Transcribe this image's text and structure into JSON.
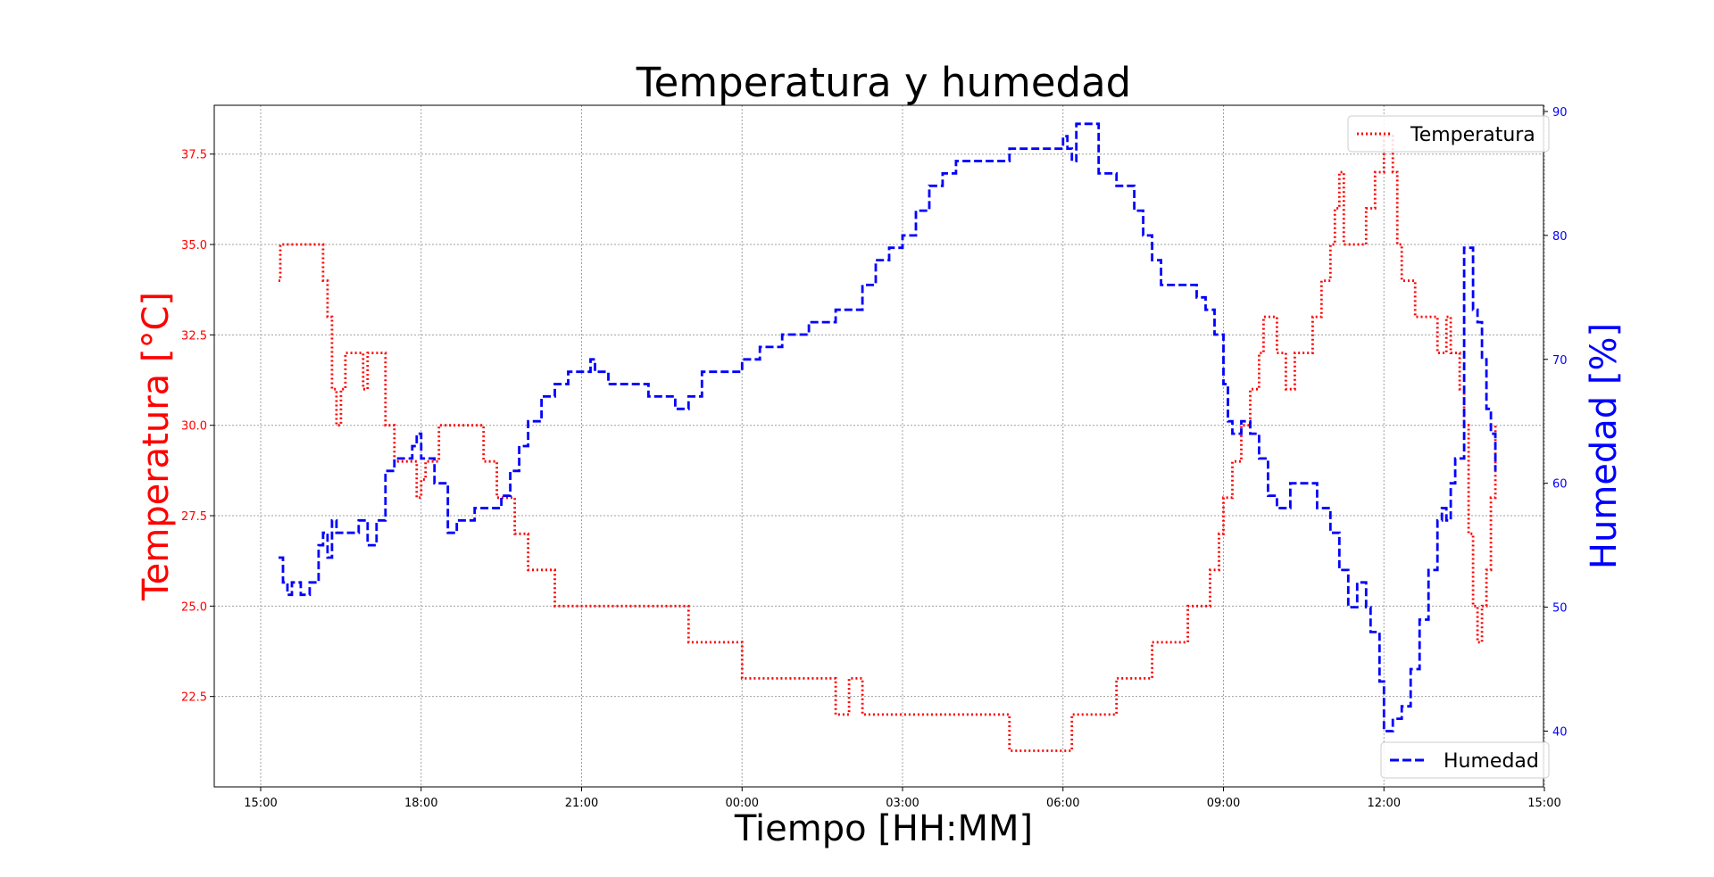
{
  "chart_data": {
    "type": "line",
    "title": "Temperatura y humedad",
    "xlabel": "Tiempo [HH:MM]",
    "ylabel_left": "Temperatura [°C]",
    "ylabel_right": "Humedad [%]",
    "x_unit": "time of day (HH:MM), starting at 15:00 and ending at 15:00 next day",
    "x_tick_labels": [
      "15:00",
      "18:00",
      "21:00",
      "00:00",
      "03:00",
      "06:00",
      "09:00",
      "12:00",
      "15:00"
    ],
    "y_left_ticks": [
      "22.5",
      "25.0",
      "27.5",
      "30.0",
      "32.5",
      "35.0",
      "37.5"
    ],
    "y_right_ticks": [
      "40",
      "50",
      "60",
      "70",
      "80",
      "90"
    ],
    "y_left_lim": [
      20.0,
      38.85
    ],
    "y_right_lim": [
      35.5,
      90.5
    ],
    "grid": true,
    "colors": {
      "temperature": "#ff0000",
      "humidity": "#0000ff",
      "grid": "#a0a0a0"
    },
    "legend": [
      {
        "label": "Temperatura",
        "placement": "top-right",
        "style": "dotted",
        "color": "#ff0000"
      },
      {
        "label": "Humedad",
        "placement": "bottom-right",
        "style": "dashed",
        "color": "#0000ff"
      }
    ],
    "series": [
      {
        "name": "Temperatura",
        "axis": "left",
        "color": "#ff0000",
        "style": "dotted",
        "x": [
          "15:20",
          "15:22",
          "16:05",
          "16:10",
          "16:15",
          "16:20",
          "16:25",
          "16:30",
          "16:35",
          "16:45",
          "16:55",
          "17:00",
          "17:05",
          "17:10",
          "17:20",
          "17:30",
          "17:45",
          "17:55",
          "18:00",
          "18:05",
          "18:10",
          "18:20",
          "18:30",
          "18:40",
          "19:10",
          "19:25",
          "19:35",
          "19:45",
          "20:00",
          "20:15",
          "20:30",
          "21:00",
          "21:30",
          "22:00",
          "22:30",
          "23:00",
          "23:15",
          "23:30",
          "23:45",
          "00:00",
          "00:30",
          "01:00",
          "01:30",
          "01:45",
          "02:00",
          "02:15",
          "02:30",
          "03:00",
          "03:30",
          "04:00",
          "04:30",
          "05:00",
          "05:30",
          "06:00",
          "06:10",
          "06:20",
          "06:40",
          "07:00",
          "07:20",
          "07:40",
          "08:00",
          "08:20",
          "08:30",
          "08:40",
          "08:45",
          "08:50",
          "08:55",
          "09:00",
          "09:10",
          "09:20",
          "09:30",
          "09:40",
          "09:45",
          "09:50",
          "10:00",
          "10:10",
          "10:20",
          "10:30",
          "10:40",
          "10:45",
          "10:50",
          "10:55",
          "11:00",
          "11:05",
          "11:10",
          "11:15",
          "11:20",
          "11:30",
          "11:40",
          "11:50",
          "12:00",
          "12:10",
          "12:15",
          "12:20",
          "12:25",
          "12:35",
          "12:50",
          "13:00",
          "13:10",
          "13:15",
          "13:20",
          "13:25",
          "13:30",
          "13:35",
          "13:40",
          "13:45",
          "13:50",
          "13:55",
          "14:00",
          "14:05"
        ],
        "y": [
          34.0,
          35.0,
          35.0,
          34.0,
          33.0,
          31.0,
          30.0,
          31.0,
          32.0,
          32.0,
          31.0,
          32.0,
          32.0,
          32.0,
          30.0,
          29.0,
          29.0,
          28.0,
          28.5,
          29.0,
          29.0,
          30.0,
          30.0,
          30.0,
          29.0,
          28.0,
          28.0,
          27.0,
          26.0,
          26.0,
          25.0,
          25.0,
          25.0,
          25.0,
          25.0,
          24.0,
          24.0,
          24.0,
          24.0,
          23.0,
          23.0,
          23.0,
          23.0,
          22.0,
          23.0,
          22.0,
          22.0,
          22.0,
          22.0,
          22.0,
          22.0,
          21.0,
          21.0,
          21.0,
          22.0,
          22.0,
          22.0,
          23.0,
          23.0,
          24.0,
          24.0,
          25.0,
          25.0,
          25.0,
          26.0,
          26.0,
          27.0,
          28.0,
          29.0,
          30.0,
          31.0,
          32.0,
          33.0,
          33.0,
          32.0,
          31.0,
          32.0,
          32.0,
          33.0,
          33.0,
          34.0,
          34.0,
          35.0,
          36.0,
          37.0,
          35.0,
          35.0,
          35.0,
          36.0,
          37.0,
          38.0,
          37.0,
          35.0,
          34.0,
          34.0,
          33.0,
          33.0,
          32.0,
          33.0,
          32.0,
          32.0,
          31.0,
          30.0,
          27.0,
          25.0,
          24.0,
          25.0,
          26.0,
          28.0,
          30.0
        ]
      },
      {
        "name": "Humedad",
        "axis": "right",
        "color": "#0000ff",
        "style": "dashed",
        "x": [
          "15:20",
          "15:25",
          "15:30",
          "15:35",
          "15:40",
          "15:45",
          "15:55",
          "16:05",
          "16:10",
          "16:15",
          "16:20",
          "16:25",
          "16:35",
          "16:50",
          "17:00",
          "17:10",
          "17:20",
          "17:30",
          "17:40",
          "17:50",
          "17:55",
          "18:00",
          "18:05",
          "18:15",
          "18:30",
          "18:40",
          "18:50",
          "19:00",
          "19:20",
          "19:30",
          "19:40",
          "19:50",
          "20:00",
          "20:15",
          "20:30",
          "20:45",
          "21:00",
          "21:10",
          "21:15",
          "21:30",
          "21:45",
          "22:00",
          "22:15",
          "22:30",
          "22:45",
          "23:00",
          "23:15",
          "23:30",
          "23:45",
          "00:00",
          "00:10",
          "00:20",
          "00:30",
          "00:45",
          "01:00",
          "01:15",
          "01:30",
          "01:45",
          "02:00",
          "02:15",
          "02:30",
          "02:45",
          "03:00",
          "03:15",
          "03:30",
          "03:45",
          "04:00",
          "04:15",
          "04:30",
          "05:00",
          "05:30",
          "05:50",
          "06:00",
          "06:05",
          "06:10",
          "06:15",
          "06:30",
          "06:40",
          "06:50",
          "07:00",
          "07:20",
          "07:30",
          "07:40",
          "07:50",
          "08:00",
          "08:15",
          "08:30",
          "08:40",
          "08:50",
          "09:00",
          "09:05",
          "09:10",
          "09:20",
          "09:30",
          "09:40",
          "09:50",
          "10:00",
          "10:15",
          "10:30",
          "10:45",
          "11:00",
          "11:10",
          "11:20",
          "11:30",
          "11:40",
          "11:45",
          "11:55",
          "12:00",
          "12:10",
          "12:20",
          "12:30",
          "12:40",
          "12:50",
          "13:00",
          "13:05",
          "13:10",
          "13:15",
          "13:20",
          "13:30",
          "13:40",
          "13:45",
          "13:50",
          "13:55",
          "14:00",
          "14:05"
        ],
        "y": [
          54,
          52,
          51,
          52,
          52,
          51,
          52,
          55,
          56,
          54,
          57,
          56,
          56,
          57,
          55,
          57,
          61,
          62,
          62,
          63,
          64,
          62,
          62,
          60,
          56,
          57,
          57,
          58,
          58,
          59,
          61,
          63,
          65,
          67,
          68,
          69,
          69,
          70,
          69,
          68,
          68,
          68,
          67,
          67,
          66,
          67,
          69,
          69,
          69,
          70,
          70,
          71,
          71,
          72,
          72,
          73,
          73,
          74,
          74,
          76,
          78,
          79,
          80,
          82,
          84,
          85,
          86,
          86,
          86,
          87,
          87,
          87,
          88,
          87,
          86,
          89,
          89,
          85,
          85,
          84,
          82,
          80,
          78,
          76,
          76,
          76,
          75,
          74,
          72,
          68,
          65,
          64,
          65,
          64,
          62,
          59,
          58,
          60,
          60,
          58,
          56,
          53,
          50,
          52,
          50,
          48,
          44,
          40,
          41,
          42,
          45,
          49,
          53,
          57,
          58,
          57,
          60,
          62,
          79,
          74,
          73,
          70,
          66,
          64,
          61
        ]
      }
    ]
  }
}
